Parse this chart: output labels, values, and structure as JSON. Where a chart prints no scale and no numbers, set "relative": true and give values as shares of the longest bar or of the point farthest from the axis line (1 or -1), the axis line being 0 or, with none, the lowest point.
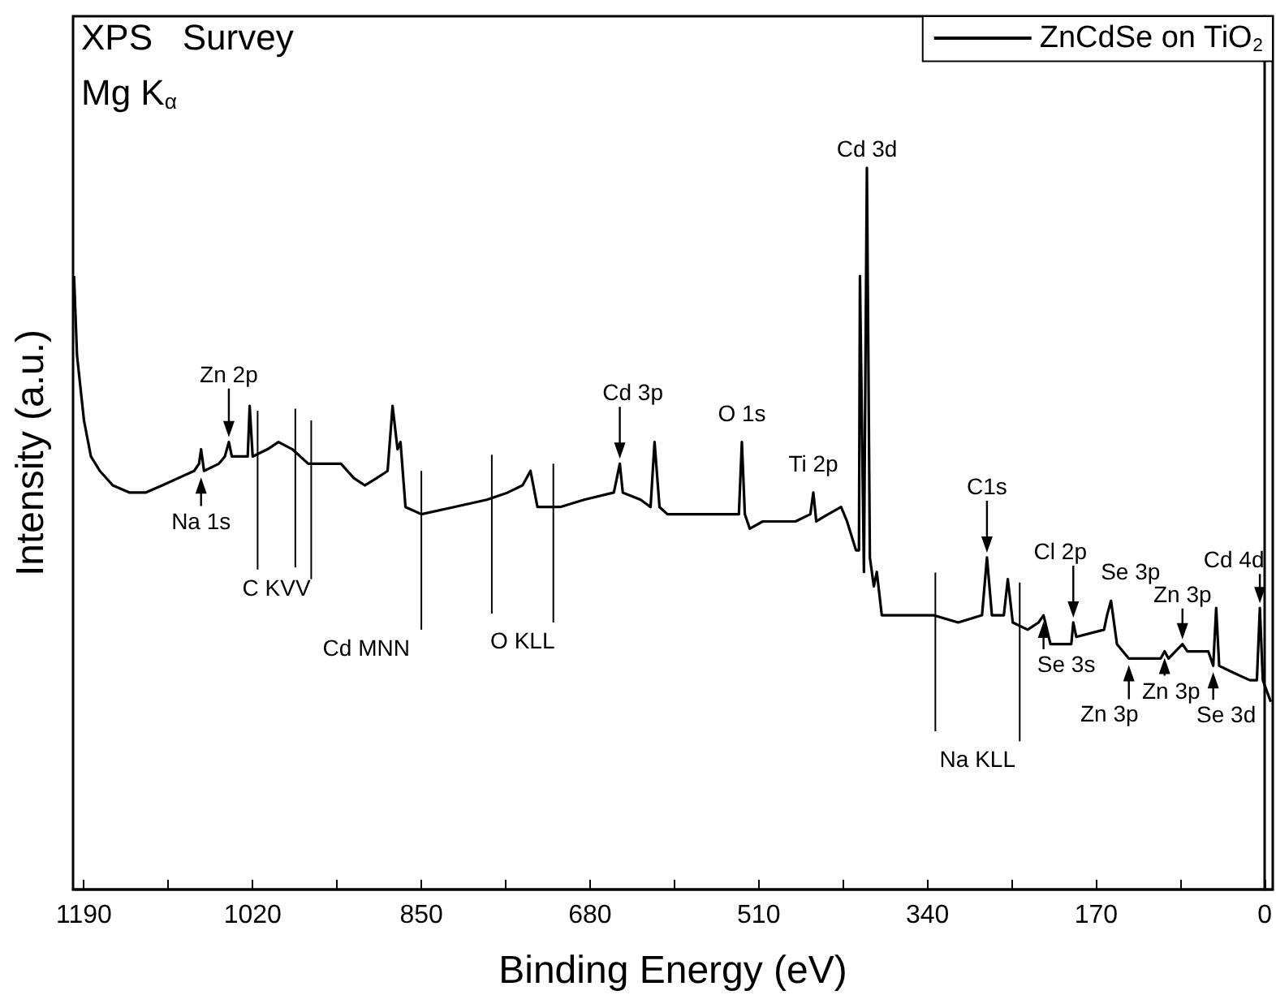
{
  "chart_data": {
    "type": "line",
    "relative": true,
    "xlabel": "Binding Energy (eV)",
    "ylabel": "Intensity (a.u.)",
    "xlim": [
      1201,
      -8
    ],
    "xticks": [
      1190,
      {
        "value": 1105,
        "label": null
      },
      1020,
      {
        "value": 935,
        "label": null
      },
      850,
      {
        "value": 765,
        "label": null
      },
      680,
      {
        "value": 595,
        "label": null
      },
      510,
      {
        "value": 425,
        "label": null
      },
      340,
      {
        "value": 255,
        "label": null
      },
      170,
      {
        "value": 85,
        "label": null
      },
      0
    ],
    "legend": "top right",
    "series": [
      {
        "name": "ZnCdSe on TiO$_{2}$",
        "color": "#000000",
        "x": [
          1200,
          1197,
          1190,
          1183,
          1174,
          1161,
          1144,
          1128,
          1111,
          1095,
          1079,
          1074,
          1072,
          1069,
          1054,
          1048,
          1044,
          1041,
          1030,
          1025,
          1023,
          1020,
          1005,
          994,
          980,
          964,
          948,
          931,
          918,
          907,
          895,
          884,
          879,
          874,
          871,
          866,
          850,
          817,
          784,
          763,
          748,
          740,
          733,
          710,
          686,
          656,
          650,
          647,
          629,
          619,
          615,
          610,
          602,
          588,
          555,
          530,
          527,
          524,
          519,
          506,
          473,
          458,
          455,
          452,
          440,
          427,
          421,
          412,
          409,
          408,
          404,
          401,
          398,
          394,
          391,
          386,
          358,
          334,
          309,
          285,
          280,
          275,
          263,
          259,
          254,
          239,
          228,
          223,
          216,
          195,
          193,
          190,
          162,
          159,
          155,
          149,
          137,
          105,
          101,
          97,
          83,
          78,
          57,
          52,
          49,
          46,
          31,
          15,
          8,
          5,
          2,
          -6
        ],
        "values": [
          0.85,
          0.74,
          0.65,
          0.6,
          0.58,
          0.56,
          0.55,
          0.55,
          0.56,
          0.57,
          0.58,
          0.59,
          0.61,
          0.58,
          0.59,
          0.6,
          0.62,
          0.6,
          0.6,
          0.6,
          0.67,
          0.6,
          0.61,
          0.62,
          0.61,
          0.59,
          0.59,
          0.59,
          0.57,
          0.56,
          0.57,
          0.58,
          0.67,
          0.61,
          0.62,
          0.53,
          0.52,
          0.53,
          0.54,
          0.55,
          0.56,
          0.58,
          0.53,
          0.53,
          0.54,
          0.55,
          0.59,
          0.55,
          0.54,
          0.53,
          0.62,
          0.53,
          0.52,
          0.52,
          0.52,
          0.52,
          0.62,
          0.52,
          0.5,
          0.51,
          0.51,
          0.52,
          0.55,
          0.51,
          0.52,
          0.53,
          0.51,
          0.47,
          0.47,
          0.85,
          0.44,
          1,
          0.46,
          0.42,
          0.44,
          0.38,
          0.38,
          0.38,
          0.37,
          0.38,
          0.46,
          0.38,
          0.38,
          0.43,
          0.37,
          0.36,
          0.37,
          0.38,
          0.34,
          0.34,
          0.37,
          0.35,
          0.36,
          0.38,
          0.4,
          0.34,
          0.32,
          0.32,
          0.33,
          0.32,
          0.34,
          0.33,
          0.33,
          0.31,
          0.39,
          0.31,
          0.3,
          0.29,
          0.29,
          0.39,
          0.29,
          0.26
        ]
      }
    ],
    "ref_lines": [
      {
        "axis": "x",
        "value": 1015,
        "label": "C KVV"
      },
      {
        "axis": "x",
        "value": 977,
        "label": null
      },
      {
        "axis": "x",
        "value": 961,
        "label": "Cd MNN"
      },
      {
        "axis": "x",
        "value": 850,
        "label": null
      },
      {
        "axis": "x",
        "value": 779,
        "label": "O KLL"
      },
      {
        "axis": "x",
        "value": 717,
        "label": null
      },
      {
        "axis": "x",
        "value": 332,
        "label": "Na KLL"
      },
      {
        "axis": "x",
        "value": 247,
        "label": null
      }
    ],
    "annotations": [
      "XPS   Survey",
      "Mg K$_{α}$",
      {
        "text": "Na 1s",
        "x": 1072,
        "y": 0.61
      },
      {
        "text": "Zn 2p",
        "x": 1044,
        "y": 0.62
      },
      {
        "text": "Cd 3p",
        "x": 650,
        "y": 0.59
      },
      {
        "text": "O 1s",
        "x": 527,
        "y": 0.62
      },
      {
        "text": "Ti 2p",
        "x": 455,
        "y": 0.55
      },
      {
        "text": "Cd 3d",
        "x": 401,
        "y": 1
      },
      {
        "text": "C1s",
        "x": 280,
        "y": 0.46
      },
      {
        "text": "Cl 2p",
        "x": 193,
        "y": 0.37
      },
      {
        "text": "Se 3p",
        "x": 155,
        "y": 0.4
      },
      {
        "text": "Zn 3p",
        "x": 83,
        "y": 0.34
      },
      {
        "text": "Cd 4d",
        "x": 5,
        "y": 0.39
      },
      {
        "text": "Se 3s",
        "x": 223,
        "y": 0.38
      },
      {
        "text": "Zn 3p",
        "x": 137,
        "y": 0.32
      },
      {
        "text": "Zn 3p",
        "x": 101,
        "y": 0.33
      },
      {
        "text": "Se 3d",
        "x": 52,
        "y": 0.31
      }
    ]
  }
}
